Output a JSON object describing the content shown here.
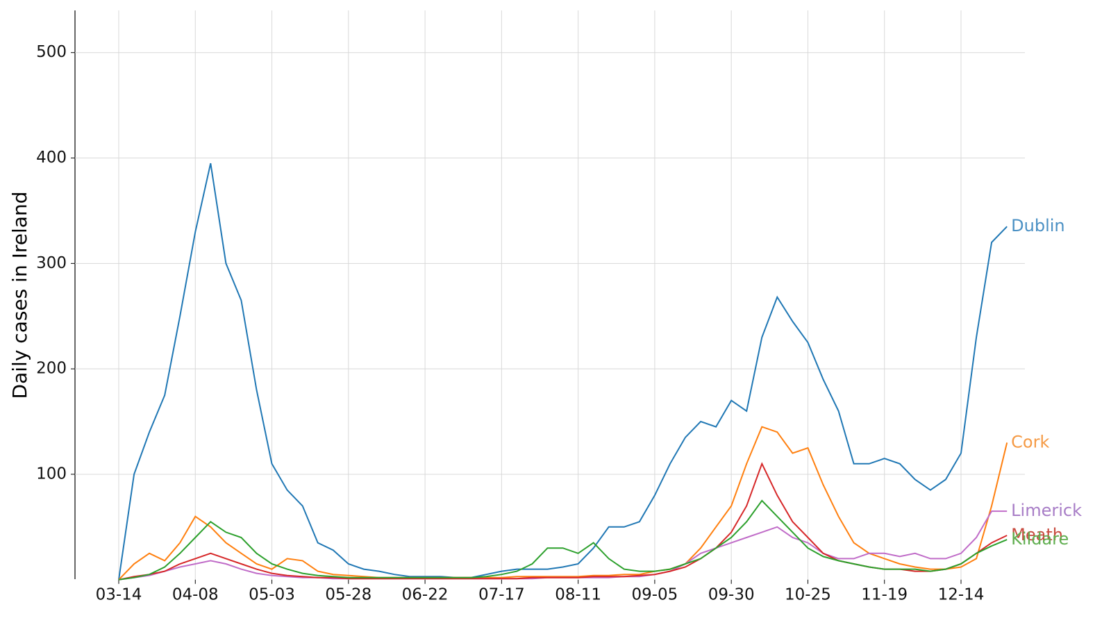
{
  "chart_data": {
    "type": "line",
    "ylabel": "Daily cases in Ireland",
    "categories": [
      "03-14",
      null,
      null,
      null,
      null,
      "04-08",
      null,
      null,
      null,
      null,
      "05-03",
      null,
      null,
      null,
      null,
      "05-28",
      null,
      null,
      null,
      null,
      "06-22",
      null,
      null,
      null,
      null,
      "07-17",
      null,
      null,
      null,
      null,
      "08-11",
      null,
      null,
      null,
      null,
      "09-05",
      null,
      null,
      null,
      null,
      "09-30",
      null,
      null,
      null,
      null,
      "10-25",
      null,
      null,
      null,
      null,
      "11-19",
      null,
      null,
      null,
      null,
      "12-14",
      null,
      null,
      null
    ],
    "ylim": [
      0,
      540
    ],
    "yticks": [
      100,
      200,
      300,
      400,
      500
    ],
    "grid": true,
    "series": [
      {
        "name": "Dublin",
        "color": "#1f77b4",
        "label_color": "#4a90c4",
        "values": [
          0,
          100,
          140,
          175,
          250,
          330,
          395,
          300,
          265,
          180,
          110,
          85,
          70,
          35,
          28,
          15,
          10,
          8,
          5,
          3,
          3,
          3,
          2,
          2,
          5,
          8,
          10,
          10,
          10,
          12,
          15,
          30,
          50,
          50,
          55,
          80,
          110,
          135,
          150,
          145,
          170,
          160,
          230,
          268,
          245,
          225,
          190,
          160,
          110,
          110,
          115,
          110,
          95,
          85,
          95,
          120,
          230,
          320,
          335
        ]
      },
      {
        "name": "Cork",
        "color": "#ff7f0e",
        "label_color": "#f59a45",
        "values": [
          0,
          15,
          25,
          18,
          35,
          60,
          50,
          35,
          25,
          15,
          10,
          20,
          18,
          8,
          5,
          4,
          3,
          2,
          2,
          2,
          2,
          2,
          2,
          2,
          2,
          2,
          3,
          3,
          3,
          3,
          3,
          4,
          4,
          5,
          5,
          8,
          10,
          15,
          30,
          50,
          70,
          110,
          145,
          140,
          120,
          125,
          90,
          60,
          35,
          25,
          20,
          15,
          12,
          10,
          10,
          12,
          20,
          70,
          130
        ]
      },
      {
        "name": "Limerick",
        "color": "#c06cc8",
        "label_color": "#a77cc6",
        "values": [
          0,
          2,
          4,
          8,
          12,
          15,
          18,
          15,
          10,
          6,
          4,
          3,
          2,
          2,
          1,
          1,
          1,
          1,
          1,
          1,
          1,
          1,
          1,
          1,
          1,
          1,
          1,
          1,
          2,
          2,
          2,
          2,
          2,
          3,
          3,
          5,
          8,
          15,
          25,
          30,
          35,
          40,
          45,
          50,
          40,
          35,
          25,
          20,
          20,
          25,
          25,
          22,
          25,
          20,
          20,
          25,
          40,
          65,
          65
        ]
      },
      {
        "name": "Meath",
        "color": "#d62728",
        "label_color": "#c84a3e",
        "values": [
          0,
          3,
          5,
          8,
          15,
          20,
          25,
          20,
          15,
          10,
          6,
          4,
          3,
          2,
          2,
          1,
          1,
          1,
          1,
          1,
          1,
          1,
          1,
          1,
          1,
          1,
          1,
          2,
          2,
          2,
          2,
          3,
          3,
          3,
          4,
          5,
          8,
          12,
          20,
          30,
          45,
          70,
          110,
          80,
          55,
          40,
          25,
          18,
          15,
          12,
          10,
          10,
          8,
          8,
          10,
          15,
          25,
          35,
          42
        ]
      },
      {
        "name": "Kildare",
        "color": "#2ca02c",
        "label_color": "#5fae4f",
        "values": [
          0,
          2,
          5,
          12,
          25,
          40,
          55,
          45,
          40,
          25,
          15,
          10,
          6,
          4,
          3,
          2,
          2,
          2,
          2,
          2,
          2,
          2,
          2,
          2,
          3,
          5,
          8,
          15,
          30,
          30,
          25,
          35,
          20,
          10,
          8,
          8,
          10,
          15,
          20,
          30,
          40,
          55,
          75,
          60,
          45,
          30,
          22,
          18,
          15,
          12,
          10,
          10,
          10,
          8,
          10,
          15,
          25,
          32,
          38
        ]
      }
    ]
  }
}
